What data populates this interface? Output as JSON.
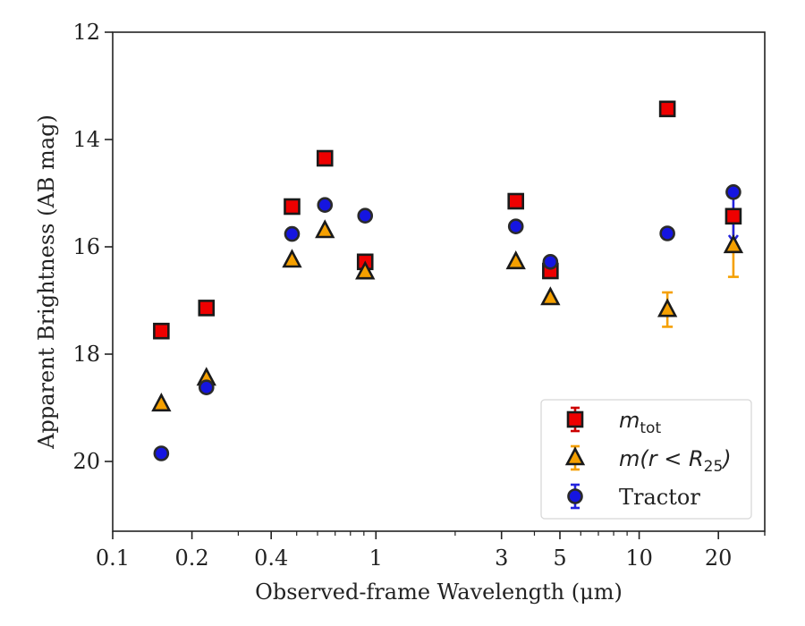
{
  "chart_data": {
    "type": "scatter",
    "xlabel": "Observed-frame Wavelength (μm)",
    "ylabel": "Apparent Brightness (AB mag)",
    "x_scale": "log",
    "xlim": [
      0.1,
      30
    ],
    "ylim": [
      21.3,
      12
    ],
    "y_inverted": true,
    "x_ticks": [
      {
        "value": 0.1,
        "label": "0.1"
      },
      {
        "value": 0.2,
        "label": "0.2"
      },
      {
        "value": 0.4,
        "label": "0.4"
      },
      {
        "value": 1,
        "label": "1"
      },
      {
        "value": 3,
        "label": "3"
      },
      {
        "value": 5,
        "label": "5"
      },
      {
        "value": 10,
        "label": "10"
      },
      {
        "value": 20,
        "label": "20"
      }
    ],
    "y_ticks": [
      {
        "value": 12,
        "label": "12"
      },
      {
        "value": 14,
        "label": "14"
      },
      {
        "value": 16,
        "label": "16"
      },
      {
        "value": 18,
        "label": "18"
      },
      {
        "value": 20,
        "label": "20"
      }
    ],
    "legend_position": "lower-right",
    "series": [
      {
        "name": "m_tot",
        "legend": {
          "main": "m",
          "sub": "tot",
          "suffix": ""
        },
        "marker": "square",
        "color": "#ee0000",
        "edge_color": "#1a1a1a",
        "error_color": "#cc0000",
        "points": [
          {
            "x": 0.153,
            "y": 17.57
          },
          {
            "x": 0.227,
            "y": 17.14
          },
          {
            "x": 0.48,
            "y": 15.25
          },
          {
            "x": 0.64,
            "y": 14.35
          },
          {
            "x": 0.91,
            "y": 16.28
          },
          {
            "x": 3.4,
            "y": 15.15
          },
          {
            "x": 4.6,
            "y": 16.45
          },
          {
            "x": 12.8,
            "y": 13.43
          },
          {
            "x": 22.8,
            "y": 15.43
          }
        ]
      },
      {
        "name": "m(r < R25)",
        "legend": {
          "main": "m(r < R",
          "sub": "25",
          "suffix": ")"
        },
        "marker": "triangle",
        "color": "#f5a000",
        "edge_color": "#1a1a1a",
        "error_color": "#f5a000",
        "points": [
          {
            "x": 0.153,
            "y": 18.93
          },
          {
            "x": 0.227,
            "y": 18.45
          },
          {
            "x": 0.48,
            "y": 16.25
          },
          {
            "x": 0.64,
            "y": 15.7
          },
          {
            "x": 0.91,
            "y": 16.47
          },
          {
            "x": 3.4,
            "y": 16.28
          },
          {
            "x": 4.6,
            "y": 16.95
          },
          {
            "x": 12.8,
            "y": 17.17,
            "yerr": 0.32
          },
          {
            "x": 22.8,
            "y": 15.98,
            "yerr": 0.58
          }
        ]
      },
      {
        "name": "Tractor",
        "legend": {
          "main": "Tractor",
          "sub": "",
          "suffix": ""
        },
        "marker": "circle",
        "color": "#1515e0",
        "edge_color": "#2a2a2a",
        "error_color": "#2222dd",
        "points": [
          {
            "x": 0.153,
            "y": 19.85
          },
          {
            "x": 0.227,
            "y": 18.62
          },
          {
            "x": 0.48,
            "y": 15.76
          },
          {
            "x": 0.64,
            "y": 15.22
          },
          {
            "x": 0.91,
            "y": 15.42
          },
          {
            "x": 3.4,
            "y": 15.62
          },
          {
            "x": 4.6,
            "y": 16.28
          },
          {
            "x": 12.8,
            "y": 15.75
          },
          {
            "x": 22.8,
            "y": 14.98,
            "yerr_lower_to": 15.9
          }
        ]
      }
    ]
  }
}
